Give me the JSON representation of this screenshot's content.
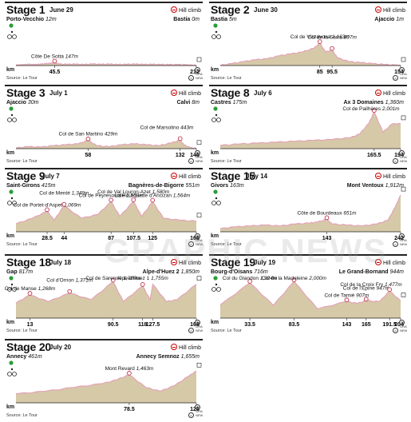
{
  "common": {
    "hill_label": "Hill climb",
    "km_label": "km",
    "source": "Source: Le Tour",
    "credit": "© GRAPHIC NEWS",
    "watermark": "GRAPHIC NEWS",
    "colors": {
      "profile_fill": "#d6c9a8",
      "profile_stroke": "#e3a3b6",
      "marker": "#c0304a",
      "axis": "#222"
    }
  },
  "chart_data": [
    {
      "type": "area",
      "stage": "Stage 1",
      "date": "June 29",
      "start": "Porto-Vecchio",
      "start_alt": "12m",
      "finish": "Bastia",
      "finish_alt": "0m",
      "x": [
        0,
        5,
        10,
        15,
        20,
        25,
        30,
        35,
        40,
        45,
        45.5,
        50,
        60,
        70,
        80,
        90,
        100,
        110,
        120,
        130,
        140,
        150,
        160,
        170,
        180,
        190,
        200,
        205,
        212
      ],
      "y": [
        12,
        30,
        40,
        60,
        45,
        50,
        70,
        90,
        110,
        140,
        147,
        80,
        60,
        70,
        50,
        80,
        60,
        70,
        50,
        60,
        70,
        55,
        60,
        50,
        40,
        45,
        35,
        20,
        0
      ],
      "climbs": [
        {
          "name": "Côte De Sotta",
          "alt": "147m",
          "km": 45.5
        }
      ],
      "ticks": [
        45.5,
        212
      ],
      "xlim": [
        0,
        212
      ],
      "ylim": [
        0,
        2000
      ]
    },
    {
      "type": "area",
      "stage": "Stage 2",
      "date": "June 30",
      "start": "Bastia",
      "start_alt": "5m",
      "finish": "Ajaccio",
      "finish_alt": "1m",
      "x": [
        0,
        10,
        20,
        30,
        40,
        50,
        60,
        70,
        80,
        85,
        90,
        95.5,
        100,
        110,
        120,
        130,
        140,
        150,
        154
      ],
      "y": [
        5,
        100,
        200,
        300,
        350,
        500,
        600,
        700,
        900,
        1163,
        700,
        807,
        400,
        200,
        150,
        100,
        50,
        20,
        1
      ],
      "climbs": [
        {
          "name": "Col de Vizzavona",
          "alt": "1,163m",
          "km": 85
        },
        {
          "name": "Col de la Serra",
          "alt": "807m",
          "km": 95.5
        }
      ],
      "ticks": [
        85,
        95.5,
        154
      ],
      "xlim": [
        0,
        154
      ],
      "ylim": [
        0,
        2000
      ]
    },
    {
      "type": "area",
      "stage": "Stage 3",
      "date": "July 1",
      "start": "Ajaccio",
      "start_alt": "30m",
      "finish": "Calvi",
      "finish_alt": "8m",
      "x": [
        0,
        10,
        20,
        30,
        40,
        50,
        58,
        65,
        75,
        85,
        95,
        105,
        115,
        125,
        132,
        135,
        140,
        145
      ],
      "y": [
        30,
        100,
        80,
        150,
        200,
        250,
        429,
        150,
        100,
        200,
        250,
        200,
        150,
        300,
        443,
        200,
        50,
        8
      ],
      "climbs": [
        {
          "name": "Col de San Martino",
          "alt": "429m",
          "km": 58
        },
        {
          "name": "Col de Marsolino",
          "alt": "443m",
          "km": 132
        }
      ],
      "ticks": [
        58,
        132,
        145
      ],
      "xlim": [
        0,
        145
      ],
      "ylim": [
        0,
        2000
      ]
    },
    {
      "type": "area",
      "stage": "Stage 8",
      "date": "July 6",
      "start": "Castres",
      "start_alt": "175m",
      "finish": "Ax 3 Domaines",
      "finish_alt": "1,360m",
      "x": [
        0,
        20,
        40,
        60,
        80,
        100,
        120,
        140,
        150,
        160,
        165.5,
        175,
        185,
        194
      ],
      "y": [
        175,
        250,
        300,
        350,
        400,
        450,
        500,
        600,
        800,
        1400,
        2001,
        900,
        1350,
        1360
      ],
      "climbs": [
        {
          "name": "Col de Pailhères",
          "alt": "2,001m",
          "km": 165.5
        }
      ],
      "ticks": [
        165.5,
        194
      ],
      "xlim": [
        0,
        194
      ],
      "ylim": [
        0,
        2100
      ]
    },
    {
      "type": "area",
      "stage": "Stage 9",
      "date": "July 7",
      "start": "Saint-Girons",
      "start_alt": "415m",
      "finish": "Bagnères-de-Bigorre",
      "finish_alt": "551m",
      "x": [
        0,
        15,
        28.5,
        35,
        44,
        60,
        75,
        87,
        95,
        107.5,
        115,
        125,
        135,
        150,
        165
      ],
      "y": [
        415,
        700,
        1069,
        600,
        1349,
        700,
        900,
        1569,
        800,
        1580,
        800,
        1564,
        700,
        600,
        551
      ],
      "climbs": [
        {
          "name": "Col de Portet-d'Aspet",
          "alt": "1,069m",
          "km": 28.5
        },
        {
          "name": "Col de Menté",
          "alt": "1,349m",
          "km": 44
        },
        {
          "name": "Col de Peyresourde",
          "alt": "1,569m",
          "km": 87
        },
        {
          "name": "Col de Val Louron-Azet",
          "alt": "1,580m",
          "km": 107.5
        },
        {
          "name": "La Hourquette d'Ancizan",
          "alt": "1,564m",
          "km": 125
        }
      ],
      "ticks": [
        28.5,
        44,
        87,
        107.5,
        125,
        165
      ],
      "xlim": [
        0,
        165
      ],
      "ylim": [
        0,
        2000
      ]
    },
    {
      "type": "area",
      "stage": "Stage 15",
      "date": "July 14",
      "start": "Givors",
      "start_alt": "163m",
      "finish": "Mont Ventoux",
      "finish_alt": "1,912m",
      "x": [
        0,
        20,
        40,
        60,
        80,
        100,
        120,
        130,
        143,
        150,
        170,
        190,
        210,
        225,
        235,
        242
      ],
      "y": [
        163,
        250,
        300,
        350,
        300,
        400,
        450,
        500,
        651,
        400,
        350,
        300,
        400,
        600,
        1300,
        1912
      ],
      "climbs": [
        {
          "name": "Côte de Bourdeaux",
          "alt": "651m",
          "km": 143
        }
      ],
      "ticks": [
        143,
        242
      ],
      "xlim": [
        0,
        242
      ],
      "ylim": [
        0,
        2000
      ]
    },
    {
      "type": "area",
      "stage": "Stage 18",
      "date": "July 18",
      "start": "Gap",
      "start_alt": "817m",
      "finish": "Alpe-d'Huez 2",
      "finish_alt": "1,850m",
      "x": [
        0,
        13,
        30,
        50,
        70,
        90.5,
        100,
        118,
        125,
        127.5,
        140,
        150,
        168
      ],
      "y": [
        817,
        1268,
        900,
        1371,
        1000,
        1989,
        900,
        1755,
        1000,
        1850,
        900,
        1000,
        1850
      ],
      "climbs": [
        {
          "name": "Col de Manse",
          "alt": "1,268m",
          "km": 13
        },
        {
          "name": "Col d'Ornon",
          "alt": "1,371m",
          "km": 50
        },
        {
          "name": "Col de Sarenne",
          "alt": "1,989m",
          "km": 90.5
        },
        {
          "name": "Alpe-d'Huez 1",
          "alt": "1,755m",
          "km": 118
        }
      ],
      "ticks": [
        13,
        90.5,
        118,
        127.5,
        168
      ],
      "xlim": [
        0,
        168
      ],
      "ylim": [
        0,
        2100
      ]
    },
    {
      "type": "area",
      "stage": "Stage 19",
      "date": "July 19",
      "start": "Bourg-d'Oisans",
      "start_alt": "716m",
      "finish": "Le Grand-Bornand",
      "finish_alt": "944m",
      "x": [
        0,
        33.5,
        60,
        83.5,
        110,
        143,
        155,
        165,
        180,
        191.5,
        204
      ],
      "y": [
        716,
        1924,
        700,
        2000,
        500,
        907,
        800,
        947,
        900,
        1477,
        944
      ],
      "climbs": [
        {
          "name": "Col du Glandon",
          "alt": "1,924m",
          "km": 33.5
        },
        {
          "name": "Col de la Madeleine",
          "alt": "2,000m",
          "km": 83.5
        },
        {
          "name": "Col de Tamié",
          "alt": "907m",
          "km": 143
        },
        {
          "name": "Col de l'Epine",
          "alt": "947m",
          "km": 165
        },
        {
          "name": "Col de la Croix Fry",
          "alt": "1,477m",
          "km": 191.5
        }
      ],
      "ticks": [
        33.5,
        83.5,
        143,
        165,
        191.5,
        204
      ],
      "xlim": [
        0,
        204
      ],
      "ylim": [
        0,
        2100
      ]
    },
    {
      "type": "area",
      "stage": "Stage 20",
      "date": "July 20",
      "start": "Annecy",
      "start_alt": "461m",
      "finish": "Annecy Semnoz",
      "finish_alt": "1,655m",
      "x": [
        0,
        20,
        40,
        60,
        70,
        78.5,
        90,
        100,
        110,
        120,
        125
      ],
      "y": [
        461,
        600,
        800,
        1000,
        1200,
        1463,
        800,
        600,
        900,
        1400,
        1655
      ],
      "climbs": [
        {
          "name": "Mont Revard",
          "alt": "1,463m",
          "km": 78.5
        }
      ],
      "ticks": [
        78.5,
        125
      ],
      "xlim": [
        0,
        125
      ],
      "ylim": [
        0,
        2000
      ]
    }
  ]
}
